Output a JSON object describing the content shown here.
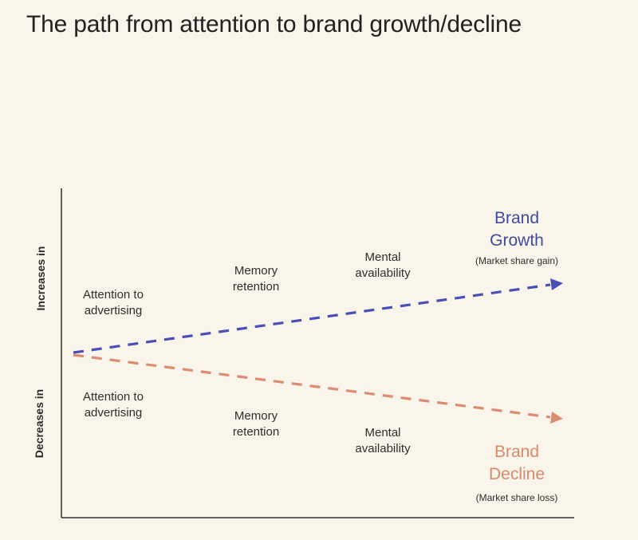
{
  "title": "The path from attention to brand growth/decline",
  "axis": {
    "increases": "Increases in",
    "decreases": "Decreases in"
  },
  "upper": {
    "attention": [
      "Attention to",
      "advertising"
    ],
    "memory": [
      "Memory",
      "retention"
    ],
    "mental": [
      "Mental",
      "availability"
    ]
  },
  "lower": {
    "attention": [
      "Attention to",
      "advertising"
    ],
    "memory": [
      "Memory",
      "retention"
    ],
    "mental": [
      "Mental",
      "availability"
    ]
  },
  "growth": {
    "title": [
      "Brand",
      "Growth"
    ],
    "subtitle": "(Market share gain)"
  },
  "decline": {
    "title": [
      "Brand",
      "Decline"
    ],
    "subtitle": "(Market share loss)"
  },
  "colors": {
    "background": "#faf5ea",
    "growth": "#4a4fb8",
    "decline": "#db8c72",
    "growth_text": "#3f4a9e",
    "decline_text": "#d98a6c",
    "axis": "#333333"
  }
}
